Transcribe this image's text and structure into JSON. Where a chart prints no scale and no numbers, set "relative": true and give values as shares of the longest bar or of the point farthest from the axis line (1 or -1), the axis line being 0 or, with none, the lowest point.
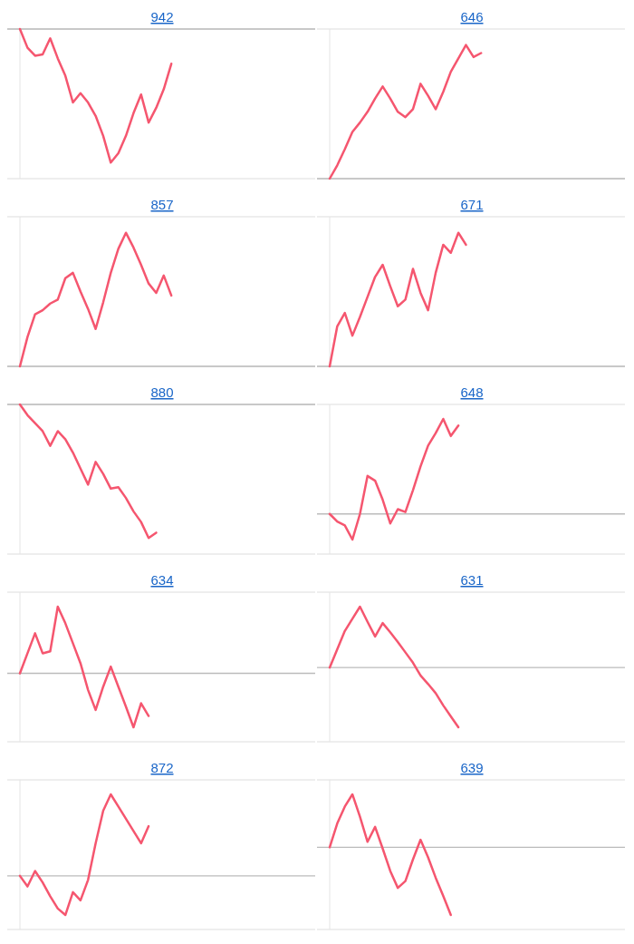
{
  "chart_data": [
    {
      "type": "line",
      "title": "942",
      "relative": true,
      "categories": [
        null,
        null,
        null,
        null,
        null,
        null,
        null,
        null,
        null,
        null,
        null,
        null,
        null,
        null,
        null,
        null,
        null,
        null,
        null,
        null,
        null,
        null,
        null,
        null,
        null,
        null,
        null,
        null,
        null,
        null,
        null,
        null,
        null,
        null,
        null,
        null,
        null,
        null,
        null,
        null
      ],
      "series": [
        {
          "color": "#f5566f",
          "values": [
            0,
            -0.14,
            -0.2,
            -0.19,
            -0.07,
            -0.22,
            -0.35,
            -0.55,
            -0.48,
            -0.55,
            -0.65,
            -0.8,
            -1,
            -0.93,
            -0.8,
            -0.63,
            -0.49,
            -0.7,
            -0.59,
            -0.45,
            -0.26,
            null,
            null,
            null,
            null,
            null,
            null,
            null,
            null,
            null,
            null,
            null,
            null,
            null,
            null,
            null,
            null,
            null,
            null,
            null
          ]
        }
      ]
    },
    {
      "type": "line",
      "title": "646",
      "relative": true,
      "categories": [
        null,
        null,
        null,
        null,
        null,
        null,
        null,
        null,
        null,
        null,
        null,
        null,
        null,
        null,
        null,
        null,
        null,
        null,
        null,
        null,
        null,
        null,
        null,
        null,
        null,
        null,
        null,
        null,
        null,
        null,
        null,
        null,
        null,
        null,
        null,
        null,
        null,
        null,
        null,
        null
      ],
      "series": [
        {
          "color": "#f5566f",
          "values": [
            0,
            0.1,
            0.22,
            0.35,
            0.42,
            0.5,
            0.6,
            0.69,
            0.6,
            0.5,
            0.46,
            0.52,
            0.71,
            0.62,
            0.52,
            0.65,
            0.8,
            0.9,
            1,
            0.91,
            0.94,
            null,
            null,
            null,
            null,
            null,
            null,
            null,
            null,
            null,
            null,
            null,
            null,
            null,
            null,
            null,
            null,
            null,
            null,
            null
          ]
        }
      ]
    },
    {
      "type": "line",
      "title": "857",
      "relative": true,
      "categories": [
        null,
        null,
        null,
        null,
        null,
        null,
        null,
        null,
        null,
        null,
        null,
        null,
        null,
        null,
        null,
        null,
        null,
        null,
        null,
        null,
        null,
        null,
        null,
        null,
        null,
        null,
        null,
        null,
        null,
        null,
        null,
        null,
        null,
        null,
        null,
        null,
        null,
        null,
        null,
        null
      ],
      "series": [
        {
          "color": "#f5566f",
          "values": [
            0,
            0.22,
            0.39,
            0.42,
            0.47,
            0.5,
            0.66,
            0.7,
            0.56,
            0.43,
            0.28,
            0.48,
            0.7,
            0.88,
            1,
            0.89,
            0.76,
            0.62,
            0.55,
            0.68,
            0.53,
            null,
            null,
            null,
            null,
            null,
            null,
            null,
            null,
            null,
            null,
            null,
            null,
            null,
            null,
            null,
            null,
            null,
            null,
            null
          ]
        }
      ]
    },
    {
      "type": "line",
      "title": "671",
      "relative": true,
      "categories": [
        null,
        null,
        null,
        null,
        null,
        null,
        null,
        null,
        null,
        null,
        null,
        null,
        null,
        null,
        null,
        null,
        null,
        null,
        null,
        null,
        null,
        null,
        null,
        null,
        null,
        null,
        null,
        null,
        null,
        null,
        null,
        null,
        null,
        null,
        null,
        null,
        null,
        null,
        null,
        null
      ],
      "series": [
        {
          "color": "#f5566f",
          "values": [
            0,
            0.3,
            0.4,
            0.23,
            0.37,
            0.52,
            0.67,
            0.76,
            0.6,
            0.45,
            0.5,
            0.73,
            0.55,
            0.42,
            0.7,
            0.91,
            0.85,
            1,
            0.91,
            null,
            null,
            null,
            null,
            null,
            null,
            null,
            null,
            null,
            null,
            null,
            null,
            null,
            null,
            null,
            null,
            null,
            null,
            null,
            null,
            null
          ]
        }
      ]
    },
    {
      "type": "line",
      "title": "880",
      "relative": true,
      "categories": [
        null,
        null,
        null,
        null,
        null,
        null,
        null,
        null,
        null,
        null,
        null,
        null,
        null,
        null,
        null,
        null,
        null,
        null,
        null,
        null,
        null,
        null,
        null,
        null,
        null,
        null,
        null,
        null,
        null,
        null,
        null,
        null,
        null,
        null,
        null,
        null,
        null,
        null,
        null,
        null
      ],
      "series": [
        {
          "color": "#f5566f",
          "values": [
            0,
            -0.08,
            -0.14,
            -0.2,
            -0.31,
            -0.2,
            -0.26,
            -0.36,
            -0.48,
            -0.6,
            -0.43,
            -0.52,
            -0.63,
            -0.62,
            -0.7,
            -0.8,
            -0.88,
            -1,
            -0.96,
            null,
            null,
            null,
            null,
            null,
            null,
            null,
            null,
            null,
            null,
            null,
            null,
            null,
            null,
            null,
            null,
            null,
            null,
            null,
            null,
            null
          ]
        }
      ]
    },
    {
      "type": "line",
      "title": "648",
      "relative": true,
      "categories": [
        null,
        null,
        null,
        null,
        null,
        null,
        null,
        null,
        null,
        null,
        null,
        null,
        null,
        null,
        null,
        null,
        null,
        null,
        null,
        null,
        null,
        null,
        null,
        null,
        null,
        null,
        null,
        null,
        null,
        null,
        null,
        null,
        null,
        null,
        null,
        null,
        null,
        null,
        null,
        null
      ],
      "series": [
        {
          "color": "#f5566f",
          "values": [
            0,
            -0.08,
            -0.12,
            -0.27,
            0,
            0.4,
            0.35,
            0.15,
            -0.1,
            0.05,
            0.02,
            0.25,
            0.5,
            0.72,
            0.85,
            1,
            0.82,
            0.93,
            null,
            null,
            null,
            null,
            null,
            null,
            null,
            null,
            null,
            null,
            null,
            null,
            null,
            null,
            null,
            null,
            null,
            null,
            null,
            null,
            null,
            null
          ]
        }
      ]
    },
    {
      "type": "line",
      "title": "634",
      "relative": true,
      "categories": [
        null,
        null,
        null,
        null,
        null,
        null,
        null,
        null,
        null,
        null,
        null,
        null,
        null,
        null,
        null,
        null,
        null,
        null,
        null,
        null,
        null,
        null,
        null,
        null,
        null,
        null,
        null,
        null,
        null,
        null,
        null,
        null,
        null,
        null,
        null,
        null,
        null,
        null,
        null,
        null
      ],
      "series": [
        {
          "color": "#f5566f",
          "values": [
            0,
            0.3,
            0.6,
            0.3,
            0.33,
            1,
            0.75,
            0.45,
            0.15,
            -0.25,
            -0.55,
            -0.2,
            0.1,
            -0.2,
            -0.5,
            -0.81,
            -0.45,
            -0.64,
            null,
            null,
            null,
            null,
            null,
            null,
            null,
            null,
            null,
            null,
            null,
            null,
            null,
            null,
            null,
            null,
            null,
            null,
            null,
            null,
            null,
            null
          ]
        }
      ]
    },
    {
      "type": "line",
      "title": "631",
      "relative": true,
      "categories": [
        null,
        null,
        null,
        null,
        null,
        null,
        null,
        null,
        null,
        null,
        null,
        null,
        null,
        null,
        null,
        null,
        null,
        null,
        null,
        null,
        null,
        null,
        null,
        null,
        null,
        null,
        null,
        null,
        null,
        null,
        null,
        null,
        null,
        null,
        null,
        null,
        null,
        null,
        null,
        null
      ],
      "series": [
        {
          "color": "#f5566f",
          "values": [
            0,
            0.3,
            0.6,
            0.8,
            1,
            0.75,
            0.51,
            0.73,
            0.58,
            0.42,
            0.25,
            0.08,
            -0.13,
            -0.27,
            -0.42,
            -0.62,
            -0.8,
            -0.98,
            null,
            null,
            null,
            null,
            null,
            null,
            null,
            null,
            null,
            null,
            null,
            null,
            null,
            null,
            null,
            null,
            null,
            null,
            null,
            null,
            null,
            null
          ]
        }
      ]
    },
    {
      "type": "line",
      "title": "872",
      "relative": true,
      "categories": [
        null,
        null,
        null,
        null,
        null,
        null,
        null,
        null,
        null,
        null,
        null,
        null,
        null,
        null,
        null,
        null,
        null,
        null,
        null,
        null,
        null,
        null,
        null,
        null,
        null,
        null,
        null,
        null,
        null,
        null,
        null,
        null,
        null,
        null,
        null,
        null,
        null,
        null,
        null,
        null
      ],
      "series": [
        {
          "color": "#f5566f",
          "values": [
            0,
            -0.13,
            0.06,
            -0.08,
            -0.25,
            -0.4,
            -0.48,
            -0.2,
            -0.3,
            -0.05,
            0.4,
            0.8,
            1,
            0.85,
            0.7,
            0.55,
            0.4,
            0.61,
            null,
            null,
            null,
            null,
            null,
            null,
            null,
            null,
            null,
            null,
            null,
            null,
            null,
            null,
            null,
            null,
            null,
            null,
            null,
            null,
            null,
            null
          ]
        }
      ]
    },
    {
      "type": "line",
      "title": "639",
      "relative": true,
      "categories": [
        null,
        null,
        null,
        null,
        null,
        null,
        null,
        null,
        null,
        null,
        null,
        null,
        null,
        null,
        null,
        null,
        null,
        null,
        null,
        null,
        null,
        null,
        null,
        null,
        null,
        null,
        null,
        null,
        null,
        null,
        null,
        null,
        null,
        null,
        null,
        null,
        null,
        null,
        null,
        null
      ],
      "series": [
        {
          "color": "#f5566f",
          "values": [
            0,
            0.35,
            0.6,
            0.78,
            0.45,
            0.08,
            0.3,
            -0.02,
            -0.35,
            -0.6,
            -0.5,
            -0.18,
            0.11,
            -0.15,
            -0.45,
            -0.72,
            -1,
            null,
            null,
            null,
            null,
            null,
            null,
            null,
            null,
            null,
            null,
            null,
            null,
            null,
            null,
            null,
            null,
            null,
            null,
            null,
            null,
            null,
            null,
            null
          ]
        }
      ]
    }
  ]
}
